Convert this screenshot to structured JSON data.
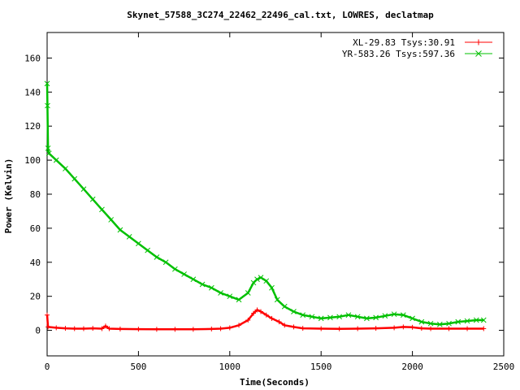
{
  "chart_data": {
    "type": "line",
    "title": "Skynet_57588_3C274_22462_22496_cal.txt, LOWRES, declatmap",
    "xlabel": "Time(Seconds)",
    "ylabel": "Power (Kelvin)",
    "xlim": [
      0,
      2500
    ],
    "ylim": [
      -15,
      175
    ],
    "xticks": [
      0,
      500,
      1000,
      1500,
      2000,
      2500
    ],
    "yticks": [
      0,
      20,
      40,
      60,
      80,
      100,
      120,
      140,
      160
    ],
    "legend_position": "top-right",
    "series": [
      {
        "name": "XL-29.83 Tsys:30.91",
        "color": "#ff0000",
        "marker": "plus",
        "points": [
          [
            0,
            9
          ],
          [
            5,
            2
          ],
          [
            50,
            1.5
          ],
          [
            100,
            1.2
          ],
          [
            150,
            1.0
          ],
          [
            200,
            1.0
          ],
          [
            250,
            1.2
          ],
          [
            300,
            1.0
          ],
          [
            320,
            2.5
          ],
          [
            340,
            1.0
          ],
          [
            400,
            0.8
          ],
          [
            500,
            0.7
          ],
          [
            600,
            0.6
          ],
          [
            700,
            0.6
          ],
          [
            800,
            0.6
          ],
          [
            900,
            0.8
          ],
          [
            950,
            1.0
          ],
          [
            1000,
            1.5
          ],
          [
            1050,
            3
          ],
          [
            1100,
            6
          ],
          [
            1130,
            10
          ],
          [
            1150,
            12
          ],
          [
            1170,
            11
          ],
          [
            1200,
            9
          ],
          [
            1230,
            7
          ],
          [
            1270,
            5
          ],
          [
            1300,
            3
          ],
          [
            1350,
            2
          ],
          [
            1400,
            1.2
          ],
          [
            1500,
            1.0
          ],
          [
            1600,
            0.9
          ],
          [
            1700,
            1.0
          ],
          [
            1800,
            1.2
          ],
          [
            1900,
            1.5
          ],
          [
            1950,
            2.0
          ],
          [
            2000,
            1.8
          ],
          [
            2050,
            1.2
          ],
          [
            2100,
            1.0
          ],
          [
            2200,
            1.0
          ],
          [
            2300,
            1.0
          ],
          [
            2390,
            1.0
          ]
        ]
      },
      {
        "name": "YR-583.26 Tsys:597.36",
        "color": "#00c000",
        "marker": "cross",
        "points": [
          [
            0,
            145
          ],
          [
            2,
            132
          ],
          [
            5,
            107
          ],
          [
            10,
            104
          ],
          [
            50,
            100
          ],
          [
            100,
            95
          ],
          [
            150,
            89
          ],
          [
            200,
            83
          ],
          [
            250,
            77
          ],
          [
            300,
            71
          ],
          [
            350,
            65
          ],
          [
            400,
            59
          ],
          [
            450,
            55
          ],
          [
            500,
            51
          ],
          [
            550,
            47
          ],
          [
            600,
            43
          ],
          [
            650,
            40
          ],
          [
            700,
            36
          ],
          [
            750,
            33
          ],
          [
            800,
            30
          ],
          [
            850,
            27
          ],
          [
            900,
            25
          ],
          [
            950,
            22
          ],
          [
            1000,
            20
          ],
          [
            1050,
            18
          ],
          [
            1100,
            22
          ],
          [
            1130,
            28
          ],
          [
            1150,
            30
          ],
          [
            1170,
            31
          ],
          [
            1200,
            29
          ],
          [
            1230,
            25
          ],
          [
            1260,
            18
          ],
          [
            1300,
            14
          ],
          [
            1350,
            11
          ],
          [
            1400,
            9
          ],
          [
            1450,
            8
          ],
          [
            1500,
            7
          ],
          [
            1550,
            7.5
          ],
          [
            1600,
            8
          ],
          [
            1650,
            9
          ],
          [
            1700,
            8
          ],
          [
            1750,
            7
          ],
          [
            1800,
            7.5
          ],
          [
            1850,
            8.5
          ],
          [
            1900,
            9.5
          ],
          [
            1950,
            9.0
          ],
          [
            2000,
            7
          ],
          [
            2050,
            5
          ],
          [
            2100,
            4
          ],
          [
            2150,
            3.5
          ],
          [
            2200,
            4
          ],
          [
            2250,
            5
          ],
          [
            2300,
            5.5
          ],
          [
            2350,
            6
          ],
          [
            2390,
            6
          ]
        ]
      }
    ]
  }
}
